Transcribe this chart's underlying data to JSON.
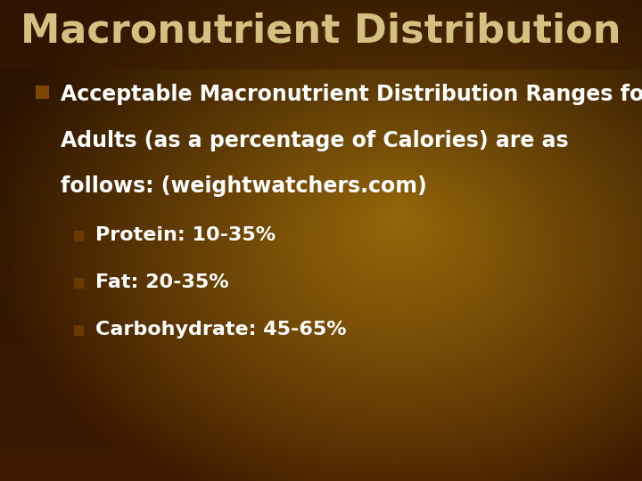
{
  "title": "Macronutrient Distribution",
  "title_color": "#D4C080",
  "title_fontsize": 32,
  "title_fontstyle": "bold",
  "bullet_main_lines": [
    "Acceptable Macronutrient Distribution Ranges for",
    "Adults (as a percentage of Calories) are as",
    "follows: (weightwatchers.com)"
  ],
  "bullet_main_fontsize": 17,
  "bullet_main_color": "#FFFFFF",
  "sub_bullets": [
    "Protein: 10-35%",
    "Fat: 20-35%",
    "Carbohydrate: 45-65%"
  ],
  "sub_bullet_fontsize": 16,
  "sub_bullet_color": "#FFFFFF",
  "bg_dark": [
    0.24,
    0.1,
    0.0
  ],
  "bg_mid": [
    0.55,
    0.33,
    0.02
  ],
  "bg_light": [
    0.72,
    0.5,
    0.05
  ],
  "fig_width": 7.2,
  "fig_height": 5.4,
  "dpi": 100
}
